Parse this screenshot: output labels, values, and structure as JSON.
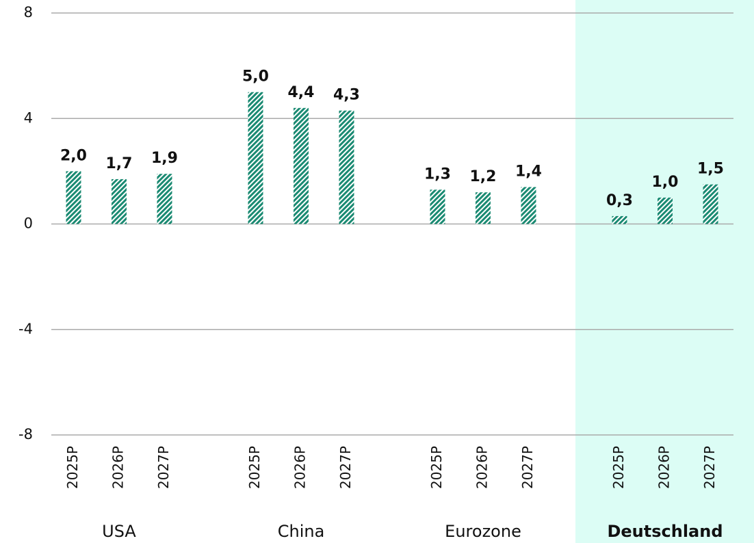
{
  "chart_data": {
    "type": "bar",
    "color": "#1a8a72",
    "highlight_color": "#dcfdf5",
    "grid": true,
    "ylim": [
      -8,
      8
    ],
    "yticks": [
      -8,
      -4,
      0,
      4,
      8
    ],
    "groups": [
      {
        "name": "USA",
        "categories": [
          "2025P",
          "2026P",
          "2027P"
        ],
        "values": [
          2.0,
          1.7,
          1.9
        ],
        "value_labels": [
          "2,0",
          "1,7",
          "1,9"
        ]
      },
      {
        "name": "China",
        "categories": [
          "2025P",
          "2026P",
          "2027P"
        ],
        "values": [
          5.0,
          4.4,
          4.3
        ],
        "value_labels": [
          "5,0",
          "4,4",
          "4,3"
        ]
      },
      {
        "name": "Eurozone",
        "categories": [
          "2025P",
          "2026P",
          "2027P"
        ],
        "values": [
          1.3,
          1.2,
          1.4
        ],
        "value_labels": [
          "1,3",
          "1,2",
          "1,4"
        ]
      },
      {
        "name": "Deutschland",
        "categories": [
          "2025P",
          "2026P",
          "2027P"
        ],
        "values": [
          0.3,
          1.0,
          1.5
        ],
        "value_labels": [
          "0,3",
          "1,0",
          "1,5"
        ],
        "highlighted": true
      }
    ]
  }
}
